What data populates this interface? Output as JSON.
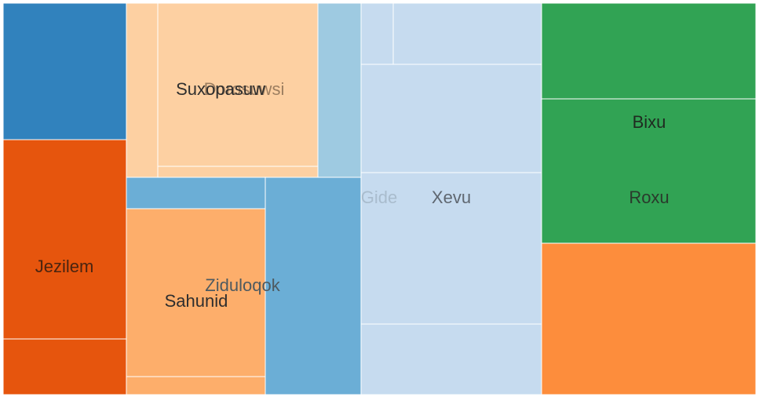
{
  "chart_data": {
    "type": "treemap",
    "title": "",
    "nodes": [
      {
        "id": "blue-dark",
        "label": "",
        "color": "#3182bd",
        "fill_opacity": 1.0
      },
      {
        "id": "jezilem",
        "label": "Jezilem",
        "color": "#e6550d",
        "fill_opacity": 1.0,
        "label_color": "#4a2410"
      },
      {
        "id": "orange-dark-low",
        "label": "",
        "color": "#e6550d",
        "fill_opacity": 1.0
      },
      {
        "id": "peach-outer",
        "label": "",
        "color": "#fdd0a2",
        "fill_opacity": 1.0
      },
      {
        "id": "dorosuwsi",
        "label": "Dorosuwsi",
        "color": "#fdd0a2",
        "fill_opacity": 1.0,
        "label_color": "#9c7e60"
      },
      {
        "id": "suxopasuw",
        "label": "Suxopasuw",
        "color": "#fdd0a2",
        "fill_opacity": 1.0,
        "label_color": "#2e2e2e"
      },
      {
        "id": "peach-strip",
        "label": "",
        "color": "#fdd0a2",
        "fill_opacity": 1.0
      },
      {
        "id": "lightblue-col",
        "label": "",
        "color": "#9ecae1",
        "fill_opacity": 1.0
      },
      {
        "id": "mid-blue-band",
        "label": "",
        "color": "#6baed6",
        "fill_opacity": 1.0
      },
      {
        "id": "ziduloqok",
        "label": "Ziduloqok",
        "color": "#6baed6",
        "fill_opacity": 1.0,
        "label_color": "#4e5a60"
      },
      {
        "id": "sahunid",
        "label": "Sahunid",
        "color": "#fdae6b",
        "fill_opacity": 1.0,
        "label_color": "#2e2e2e"
      },
      {
        "id": "light-orange-low",
        "label": "",
        "color": "#fdae6b",
        "fill_opacity": 1.0
      },
      {
        "id": "paleblue-bg",
        "label": "",
        "color": "#c6dbef",
        "fill_opacity": 1.0
      },
      {
        "id": "gide",
        "label": "Gide",
        "color": "#c6dbef",
        "fill_opacity": 1.0,
        "label_color": "#a9bccd"
      },
      {
        "id": "paleblue-small",
        "label": "",
        "color": "#c6dbef",
        "fill_opacity": 1.0
      },
      {
        "id": "paleblue-topright",
        "label": "",
        "color": "#c6dbef",
        "fill_opacity": 1.0
      },
      {
        "id": "paleblue-mid",
        "label": "",
        "color": "#c6dbef",
        "fill_opacity": 1.0
      },
      {
        "id": "xevu",
        "label": "Xevu",
        "color": "#c6dbef",
        "fill_opacity": 1.0,
        "label_color": "#5f6770"
      },
      {
        "id": "paleblue-low",
        "label": "",
        "color": "#c6dbef",
        "fill_opacity": 1.0
      },
      {
        "id": "green-top",
        "label": "",
        "color": "#31a354",
        "fill_opacity": 1.0
      },
      {
        "id": "bixu",
        "label": "Bixu",
        "color": "#31a354",
        "fill_opacity": 1.0,
        "label_color": "#1f2a20"
      },
      {
        "id": "roxu",
        "label": "Roxu",
        "color": "#31a354",
        "fill_opacity": 1.0,
        "label_color": "#2a3a2c"
      },
      {
        "id": "orange-low-right",
        "label": "",
        "color": "#fd8d3c",
        "fill_opacity": 1.0
      }
    ]
  }
}
